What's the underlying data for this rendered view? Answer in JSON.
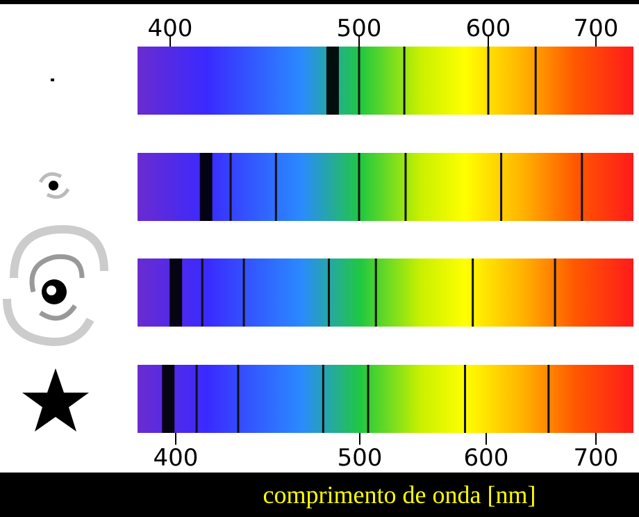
{
  "top_axis": {
    "ticks": [
      400,
      500,
      600,
      700
    ]
  },
  "bottom_axis": {
    "ticks": [
      400,
      500,
      600,
      700
    ]
  },
  "spectra": [
    {
      "strong_line": 486,
      "lines": [
        500,
        535,
        600,
        644
      ]
    },
    {
      "strong_line": 419,
      "lines": [
        432,
        456,
        500,
        536,
        612,
        687
      ]
    },
    {
      "strong_line": 403,
      "lines": [
        417,
        439,
        484,
        513,
        588,
        662
      ]
    },
    {
      "strong_line": 399,
      "lines": [
        414,
        436,
        481,
        507,
        582,
        656
      ]
    }
  ],
  "axis_label": "comprimento de onda [nm]"
}
